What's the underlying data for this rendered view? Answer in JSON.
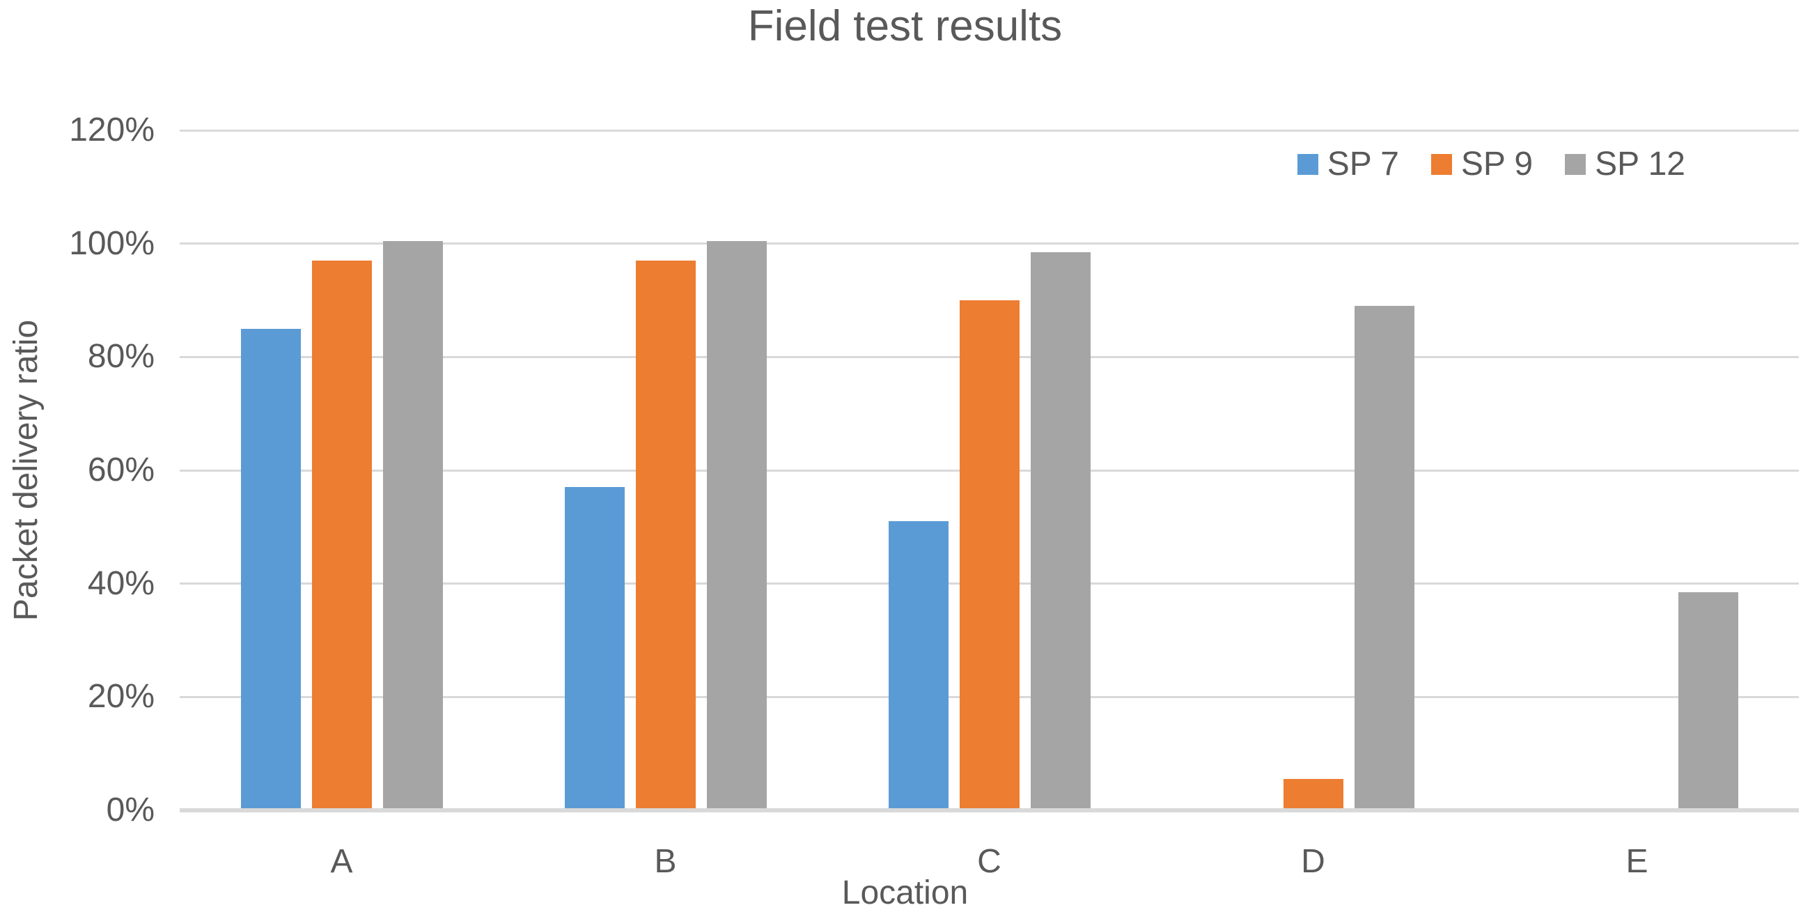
{
  "chart_data": {
    "type": "bar",
    "title": "Field test results",
    "xlabel": "Location",
    "ylabel": "Packet delivery ratio",
    "categories": [
      "A",
      "B",
      "C",
      "D",
      "E"
    ],
    "series": [
      {
        "name": "SP 7",
        "color": "#5B9BD5",
        "values": [
          85,
          57,
          51,
          null,
          null
        ]
      },
      {
        "name": "SP 9",
        "color": "#ED7D31",
        "values": [
          97,
          97,
          90,
          5.5,
          null
        ]
      },
      {
        "name": "SP 12",
        "color": "#A5A5A5",
        "values": [
          100.5,
          100.5,
          98.5,
          89,
          38.5
        ]
      }
    ],
    "ylim": [
      0,
      120
    ],
    "ytick_step": 20,
    "ytick_labels": [
      "0%",
      "20%",
      "40%",
      "60%",
      "80%",
      "100%",
      "120%"
    ],
    "grid": "horizontal-only",
    "legend_position": "top-right",
    "colors": {
      "text": "#595959",
      "gridline": "#D9D9D9",
      "axis_line": "#D9D9D9",
      "background": "#FFFFFF"
    }
  }
}
